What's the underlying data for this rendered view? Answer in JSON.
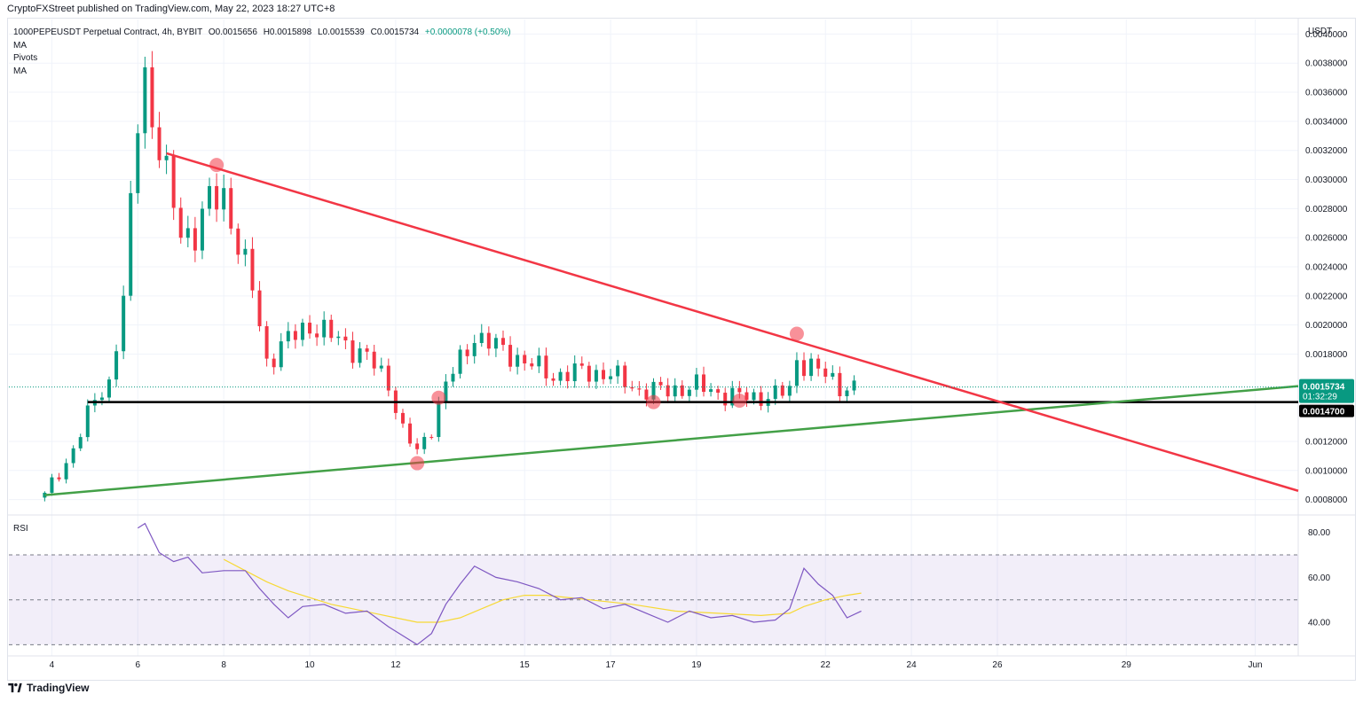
{
  "header": {
    "publisher_line": "CryptoFXStreet published on TradingView.com, May 22, 2023 18:27 UTC+8"
  },
  "legend": {
    "symbol_line": "1000PEPEUSDT Perpetual Contract, 4h, BYBIT",
    "open": "O0.0015656",
    "high": "H0.0015898",
    "low": "L0.0015539",
    "close": "C0.0015734",
    "change": "+0.0000078 (+0.50%)",
    "indicators": [
      "MA",
      "Pivots",
      "MA"
    ]
  },
  "rsi_pane": {
    "label": "RSI"
  },
  "footer": {
    "brand": "TradingView"
  },
  "colors": {
    "up": "#089981",
    "down": "#f23645",
    "resistance_line": "#f23645",
    "support_line": "#43a047",
    "horizontal_line": "#000000",
    "rsi_line": "#7e57c2",
    "rsi_ma_line": "#f7d935",
    "price_tag_bg": "#089981"
  },
  "chart_data": [
    {
      "type": "candlestick",
      "title": "",
      "y_unit_label": "USDT",
      "ylim": [
        0.0007,
        0.0041
      ],
      "x_range": [
        "May 3",
        "June 2"
      ],
      "x_ticks": [
        "4",
        "6",
        "8",
        "10",
        "12",
        "15",
        "17",
        "19",
        "22",
        "24",
        "26",
        "29",
        "Jun"
      ],
      "x_tick_days": [
        4,
        6,
        8,
        10,
        12,
        15,
        17,
        19,
        22,
        24,
        26,
        29,
        32
      ],
      "y_ticks": [
        "0.0040000",
        "0.0038000",
        "0.0036000",
        "0.0034000",
        "0.0032000",
        "0.0030000",
        "0.0028000",
        "0.0026000",
        "0.0024000",
        "0.0022000",
        "0.0020000",
        "0.0018000",
        "0.0012000",
        "0.0010000",
        "0.0008000"
      ],
      "price_labels": {
        "last_price": "0.0015734",
        "countdown": "01:32:29",
        "level": "0.0014700"
      },
      "series": [
        {
          "name": "1000PEPEUSDT",
          "close_path": [
            [
              "May 3 20:00",
              0.00083
            ],
            [
              "May 4 00:00",
              0.00092
            ],
            [
              "May 4 08:00",
              0.00105
            ],
            [
              "May 4 16:00",
              0.00125
            ],
            [
              "May 5 00:00",
              0.0015
            ],
            [
              "May 5 08:00",
              0.0016
            ],
            [
              "May 5 16:00",
              0.00215
            ],
            [
              "May 6 00:00",
              0.00345
            ],
            [
              "May 6 04:00",
              0.00375
            ],
            [
              "May 6 08:00",
              0.0034
            ],
            [
              "May 6 16:00",
              0.003
            ],
            [
              "May 7 00:00",
              0.00265
            ],
            [
              "May 7 08:00",
              0.00262
            ],
            [
              "May 7 16:00",
              0.00285
            ],
            [
              "May 8 00:00",
              0.0029
            ],
            [
              "May 8 08:00",
              0.00255
            ],
            [
              "May 8 16:00",
              0.00225
            ],
            [
              "May 9 00:00",
              0.00175
            ],
            [
              "May 9 12:00",
              0.0019
            ],
            [
              "May 10 00:00",
              0.002
            ],
            [
              "May 10 16:00",
              0.0019
            ],
            [
              "May 11 08:00",
              0.00178
            ],
            [
              "May 11 20:00",
              0.0016
            ],
            [
              "May 12 04:00",
              0.00128
            ],
            [
              "May 12 12:00",
              0.00112
            ],
            [
              "May 12 20:00",
              0.0013
            ],
            [
              "May 13 04:00",
              0.0016
            ],
            [
              "May 13 12:00",
              0.00175
            ],
            [
              "May 13 20:00",
              0.00193
            ],
            [
              "May 14 08:00",
              0.00185
            ],
            [
              "May 15 00:00",
              0.00175
            ],
            [
              "May 15 16:00",
              0.00165
            ],
            [
              "May 16 08:00",
              0.00168
            ],
            [
              "May 17 00:00",
              0.00166
            ],
            [
              "May 17 16:00",
              0.00155
            ],
            [
              "May 18 08:00",
              0.00155
            ],
            [
              "May 19 00:00",
              0.00158
            ],
            [
              "May 19 16:00",
              0.00152
            ],
            [
              "May 20 08:00",
              0.0015
            ],
            [
              "May 20 20:00",
              0.00152
            ],
            [
              "May 21 04:00",
              0.00155
            ],
            [
              "May 21 08:00",
              0.00176
            ],
            [
              "May 21 16:00",
              0.00172
            ],
            [
              "May 22 00:00",
              0.00165
            ],
            [
              "May 22 08:00",
              0.00158
            ],
            [
              "May 22 16:00",
              0.00157
            ]
          ]
        }
      ],
      "annotations": {
        "resistance_line": {
          "from": [
            "May 6 16:00",
            0.00318
          ],
          "to": [
            "June 2",
            0.00086
          ]
        },
        "support_line": {
          "from": [
            "May 3 20:00",
            0.00083
          ],
          "to": [
            "June 2",
            0.00158
          ]
        },
        "horizontal_level": {
          "value": 0.00147,
          "from": "May 4 20:00"
        },
        "pivot_markers": [
          [
            "May 7 20:00",
            0.0031
          ],
          [
            "May 12 12:00",
            0.00105
          ],
          [
            "May 13 00:00",
            0.0015
          ],
          [
            "May 18 00:00",
            0.00147
          ],
          [
            "May 20 00:00",
            0.00148
          ],
          [
            "May 21 08:00",
            0.00194
          ]
        ]
      }
    },
    {
      "type": "line",
      "title": "RSI",
      "ylim": [
        25,
        87
      ],
      "y_ticks": [
        "80.00",
        "60.00",
        "40.00"
      ],
      "bands": {
        "upper": 70,
        "middle": 50,
        "lower": 30
      },
      "series": [
        {
          "name": "RSI",
          "points": [
            [
              "May 6 00:00",
              82
            ],
            [
              "May 6 04:00",
              84
            ],
            [
              "May 6 12:00",
              71
            ],
            [
              "May 6 20:00",
              67
            ],
            [
              "May 7 04:00",
              69
            ],
            [
              "May 7 12:00",
              62
            ],
            [
              "May 8 00:00",
              63
            ],
            [
              "May 8 12:00",
              63
            ],
            [
              "May 8 20:00",
              55
            ],
            [
              "May 9 04:00",
              48
            ],
            [
              "May 9 12:00",
              42
            ],
            [
              "May 9 20:00",
              47
            ],
            [
              "May 10 08:00",
              48
            ],
            [
              "May 10 20:00",
              44
            ],
            [
              "May 11 08:00",
              45
            ],
            [
              "May 11 20:00",
              38
            ],
            [
              "May 12 04:00",
              34
            ],
            [
              "May 12 12:00",
              30
            ],
            [
              "May 12 20:00",
              35
            ],
            [
              "May 13 04:00",
              48
            ],
            [
              "May 13 12:00",
              57
            ],
            [
              "May 13 20:00",
              65
            ],
            [
              "May 14 08:00",
              60
            ],
            [
              "May 14 20:00",
              58
            ],
            [
              "May 15 08:00",
              55
            ],
            [
              "May 15 20:00",
              50
            ],
            [
              "May 16 08:00",
              51
            ],
            [
              "May 16 20:00",
              46
            ],
            [
              "May 17 08:00",
              48
            ],
            [
              "May 17 20:00",
              44
            ],
            [
              "May 18 08:00",
              40
            ],
            [
              "May 18 20:00",
              45
            ],
            [
              "May 19 08:00",
              42
            ],
            [
              "May 19 20:00",
              43
            ],
            [
              "May 20 08:00",
              40
            ],
            [
              "May 20 20:00",
              41
            ],
            [
              "May 21 04:00",
              46
            ],
            [
              "May 21 12:00",
              64
            ],
            [
              "May 21 20:00",
              57
            ],
            [
              "May 22 04:00",
              52
            ],
            [
              "May 22 12:00",
              42
            ],
            [
              "May 22 20:00",
              45
            ]
          ]
        },
        {
          "name": "RSI-based MA",
          "points": [
            [
              "May 8 00:00",
              68
            ],
            [
              "May 8 12:00",
              63
            ],
            [
              "May 9 00:00",
              58
            ],
            [
              "May 9 12:00",
              54
            ],
            [
              "May 10 00:00",
              51
            ],
            [
              "May 10 12:00",
              48
            ],
            [
              "May 11 00:00",
              46
            ],
            [
              "May 11 12:00",
              44
            ],
            [
              "May 12 00:00",
              42
            ],
            [
              "May 12 12:00",
              40
            ],
            [
              "May 13 00:00",
              40
            ],
            [
              "May 13 12:00",
              42
            ],
            [
              "May 14 00:00",
              46
            ],
            [
              "May 14 12:00",
              50
            ],
            [
              "May 15 00:00",
              52
            ],
            [
              "May 15 12:00",
              52
            ],
            [
              "May 16 12:00",
              50
            ],
            [
              "May 17 12:00",
              48
            ],
            [
              "May 18 12:00",
              45
            ],
            [
              "May 19 12:00",
              44
            ],
            [
              "May 20 12:00",
              43
            ],
            [
              "May 21 04:00",
              44
            ],
            [
              "May 21 12:00",
              47
            ],
            [
              "May 22 00:00",
              50
            ],
            [
              "May 22 12:00",
              52
            ],
            [
              "May 22 20:00",
              53
            ]
          ]
        }
      ]
    }
  ]
}
